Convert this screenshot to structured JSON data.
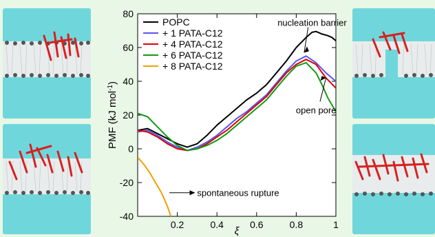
{
  "chart_data": {
    "type": "line",
    "ylabel": "PMF (kJ mol",
    "ylabel_sup": "-1",
    "ylabel_tail": ")",
    "xlabel": "ξ",
    "xlim": [
      0,
      1
    ],
    "ylim": [
      -40,
      80
    ],
    "x_ticks": [
      0.2,
      0.4,
      0.6,
      0.8,
      1
    ],
    "x_tick_labels": [
      "0.2",
      "0.4",
      "0.6",
      "0.8",
      "1"
    ],
    "y_ticks": [
      -40,
      -20,
      0,
      20,
      40,
      60,
      80
    ],
    "y_tick_labels": [
      "-40",
      "-20",
      "0",
      "20",
      "40",
      "60",
      "80"
    ],
    "legend_position": "top-left",
    "series": [
      {
        "name": "POPC",
        "color": "#000000",
        "x": [
          0,
          0.05,
          0.1,
          0.15,
          0.2,
          0.25,
          0.3,
          0.35,
          0.4,
          0.45,
          0.5,
          0.55,
          0.6,
          0.65,
          0.7,
          0.75,
          0.8,
          0.85,
          0.88,
          0.9,
          0.93,
          0.96,
          0.98,
          1.0
        ],
        "y": [
          11,
          12,
          9,
          6,
          3,
          1,
          3,
          8,
          14,
          19,
          24,
          29,
          33,
          38,
          45,
          52,
          60,
          66,
          69,
          69.5,
          68,
          67,
          66,
          64
        ]
      },
      {
        "name": "+ 1 PATA-C12",
        "color": "#5555ee",
        "x": [
          0,
          0.05,
          0.1,
          0.15,
          0.2,
          0.25,
          0.3,
          0.35,
          0.4,
          0.45,
          0.5,
          0.55,
          0.6,
          0.65,
          0.7,
          0.75,
          0.8,
          0.85,
          0.9,
          0.95,
          1.0
        ],
        "y": [
          10,
          11,
          8,
          4,
          1,
          -1,
          1,
          4,
          8,
          13,
          18,
          22,
          27,
          32,
          39,
          46,
          52,
          55,
          51,
          45,
          40
        ]
      },
      {
        "name": "+ 4 PATA-C12",
        "color": "#dd0000",
        "x": [
          0,
          0.05,
          0.1,
          0.15,
          0.2,
          0.25,
          0.3,
          0.35,
          0.4,
          0.45,
          0.5,
          0.55,
          0.6,
          0.65,
          0.7,
          0.75,
          0.8,
          0.85,
          0.9,
          0.95,
          1.0
        ],
        "y": [
          11,
          10,
          7,
          3,
          0,
          -1,
          0,
          3,
          7,
          11,
          16,
          21,
          26,
          31,
          38,
          45,
          50,
          53,
          50,
          42,
          36
        ]
      },
      {
        "name": "+ 6 PATA-C12",
        "color": "#119911",
        "x": [
          0,
          0.05,
          0.1,
          0.15,
          0.2,
          0.25,
          0.3,
          0.35,
          0.4,
          0.45,
          0.5,
          0.55,
          0.6,
          0.65,
          0.7,
          0.75,
          0.8,
          0.85,
          0.9,
          0.93,
          0.96,
          1.0
        ],
        "y": [
          21,
          19,
          13,
          7,
          2,
          -1,
          0,
          2,
          5,
          9,
          14,
          19,
          24,
          29,
          36,
          43,
          49,
          51,
          45,
          38,
          30,
          22
        ]
      },
      {
        "name": "+ 8 PATA-C12",
        "color": "#f0a000",
        "x": [
          0,
          0.03,
          0.06,
          0.09,
          0.12,
          0.15,
          0.17
        ],
        "y": [
          -5,
          -9,
          -14,
          -20,
          -26,
          -34,
          -41
        ]
      }
    ],
    "annotations": [
      {
        "text": "nucleation barrier",
        "x": 0.88,
        "y": 75,
        "arrow_to": [
          0.84,
          57
        ]
      },
      {
        "text": "open pore",
        "x": 0.9,
        "y": 23,
        "arrow_to": [
          0.95,
          42
        ]
      },
      {
        "text": "spontaneous rupture",
        "x": 0.3,
        "y": -26,
        "arrow_from": [
          0.16,
          -26
        ]
      }
    ]
  },
  "colors": {
    "background": "#e9f7e6",
    "water": "#6fd7db",
    "lipid_heads": "#555555",
    "lipid_tails": "#c8c8c8",
    "peptide": "#d82020"
  }
}
